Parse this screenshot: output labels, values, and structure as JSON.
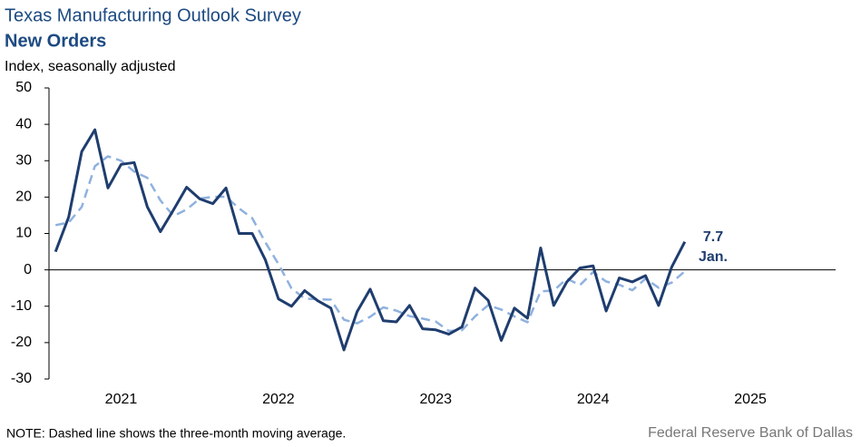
{
  "chart_data": {
    "type": "line",
    "title": "Texas Manufacturing Outlook Survey",
    "subtitle": "New Orders",
    "y_label": "Index, seasonally adjusted",
    "note": "NOTE: Dashed line shows the three-month  moving average.",
    "source": "Federal Reserve Bank of Dallas",
    "annotations": [
      "7.7",
      "Jan."
    ],
    "categories": [
      null,
      null,
      null,
      null,
      null,
      "2021",
      null,
      null,
      null,
      null,
      null,
      null,
      null,
      null,
      null,
      null,
      null,
      "2022",
      null,
      null,
      null,
      null,
      null,
      null,
      null,
      null,
      null,
      null,
      null,
      "2023",
      null,
      null,
      null,
      null,
      null,
      null,
      null,
      null,
      null,
      null,
      null,
      "2024",
      null,
      null,
      null,
      null,
      null,
      null,
      null,
      null,
      null,
      null,
      null,
      "2025",
      null,
      null,
      null,
      null,
      null,
      null
    ],
    "series": [
      {
        "color": "#1f3d6e",
        "dash": false,
        "values": [
          5,
          14.5,
          32.5,
          38.5,
          22.5,
          29,
          29.5,
          17.3,
          10.5,
          16.5,
          22.7,
          19.5,
          18.2,
          22.5,
          10,
          10,
          2.8,
          -8,
          -10,
          -5.7,
          -8.5,
          -10.5,
          -22,
          -11.5,
          -5.3,
          -14,
          -14.3,
          -9.8,
          -16.2,
          -16.5,
          -17.7,
          -15.7,
          -5,
          -8.4,
          -19.4,
          -10.5,
          -13.3,
          6,
          -9.8,
          -3.3,
          0.5,
          1.1,
          -11.3,
          -2.2,
          -3.3,
          -1.6,
          -9.8,
          0.8,
          7.7,
          null,
          null,
          null,
          null,
          null,
          null,
          null,
          null,
          null,
          null,
          null
        ]
      },
      {
        "color": "#8fb1de",
        "dash": true,
        "values": [
          12.3,
          13,
          17.3,
          28.5,
          31.2,
          30,
          27,
          25.3,
          19.1,
          14.8,
          16.6,
          19.6,
          20.1,
          20.1,
          16.9,
          14.2,
          7.6,
          1.6,
          -5.1,
          -7.9,
          -8.1,
          -8.2,
          -13.7,
          -14.7,
          -12.9,
          -10.3,
          -11.2,
          -12.7,
          -13.4,
          -14.2,
          -16.8,
          -16.6,
          -12.8,
          -9.7,
          -10.9,
          -12.8,
          -14.4,
          -5.9,
          -5.7,
          -2.4,
          -4.2,
          -0.6,
          -3.2,
          -4.1,
          -5.6,
          -2.4,
          -4.9,
          -3.5,
          -0.4,
          null,
          null,
          null,
          null,
          null,
          null,
          null,
          null,
          null,
          null,
          null
        ]
      }
    ],
    "ylim": [
      -30,
      50
    ],
    "yticks": [
      -30,
      -20,
      -10,
      0,
      10,
      20,
      30,
      40,
      50
    ],
    "grid": false
  }
}
